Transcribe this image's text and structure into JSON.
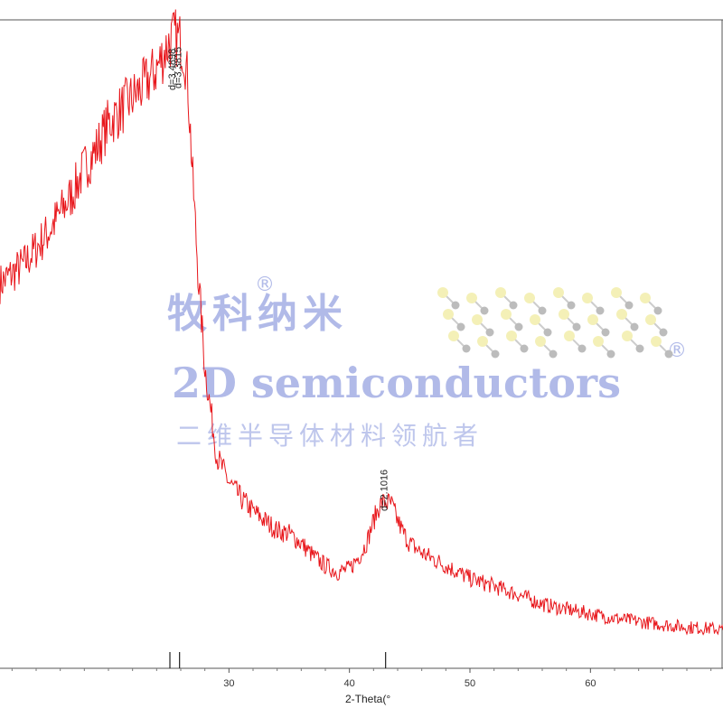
{
  "chart_data": {
    "type": "line",
    "title": "",
    "xlabel": "2-Theta(°",
    "ylabel": "",
    "xlim": [
      11,
      71
    ],
    "ylim": [
      0,
      1000
    ],
    "grid": false,
    "x_ticks": [
      30,
      40,
      50,
      60
    ],
    "x_tick_labels": [
      "30",
      "40",
      "50",
      "60"
    ],
    "reference_lines": [
      25.1,
      25.9,
      43.0
    ],
    "peak_labels": [
      {
        "x": 25.4,
        "text": "d=3.4898"
      },
      {
        "x": 25.9,
        "text": "d=3.3815"
      },
      {
        "x": 43.0,
        "text": "d=2.1016"
      }
    ],
    "series": [
      {
        "name": "",
        "color": "#e8161b",
        "x": [
          11,
          13,
          15,
          17,
          18,
          19,
          20,
          21,
          22,
          23,
          24,
          24.5,
          25,
          25.5,
          26,
          26.3,
          26.6,
          27,
          27.5,
          28,
          29,
          30,
          31,
          32,
          33,
          34,
          35,
          36,
          37,
          38,
          39,
          40,
          41,
          41.5,
          42,
          42.5,
          43,
          43.5,
          44,
          44.5,
          45,
          46,
          47,
          48,
          49,
          50,
          52,
          54,
          56,
          58,
          60,
          62,
          64,
          66,
          68,
          70,
          71
        ],
        "y": [
          600,
          630,
          680,
          740,
          780,
          810,
          850,
          870,
          890,
          910,
          935,
          955,
          975,
          985,
          978,
          960,
          910,
          760,
          600,
          470,
          330,
          290,
          265,
          245,
          230,
          215,
          210,
          195,
          175,
          160,
          150,
          155,
          180,
          200,
          230,
          255,
          260,
          255,
          230,
          210,
          195,
          180,
          170,
          160,
          150,
          140,
          128,
          115,
          100,
          92,
          85,
          78,
          73,
          68,
          64,
          62,
          60
        ]
      }
    ]
  },
  "watermark": {
    "cn_brand": "牧科纳米",
    "en_brand": "2D semiconductors",
    "cn_slogan": "二维半导体材料领航者",
    "registered_mark": "®"
  }
}
